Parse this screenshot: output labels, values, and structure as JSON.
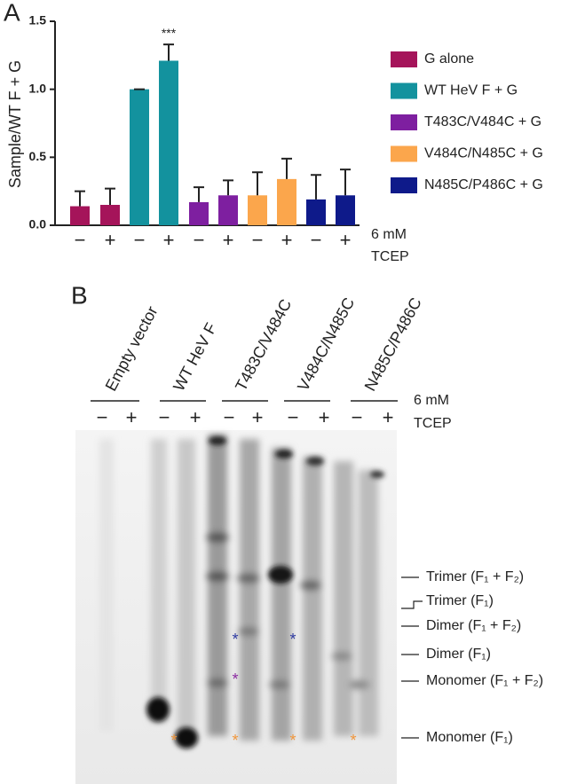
{
  "chart_data": {
    "type": "bar",
    "panel_label": "A",
    "ylabel": "Sample/WT F + G",
    "categories": [
      "−",
      "+",
      "−",
      "+",
      "−",
      "+",
      "−",
      "+",
      "−",
      "+"
    ],
    "xlabel_lines": [
      "6 mM",
      "TCEP"
    ],
    "ylim": [
      0,
      1.5
    ],
    "yticks": [
      {
        "value": 0,
        "label": "0.0"
      },
      {
        "value": 0.5,
        "label": "0.5"
      },
      {
        "value": 1,
        "label": "1.0"
      },
      {
        "value": 1.5,
        "label": "1.5"
      }
    ],
    "series": [
      {
        "name": "G alone",
        "color": "#a5145a",
        "values": [
          0.14,
          0.15,
          null,
          null,
          null,
          null,
          null,
          null,
          null,
          null
        ],
        "errors": [
          0.11,
          0.12,
          null,
          null,
          null,
          null,
          null,
          null,
          null,
          null
        ]
      },
      {
        "name": "WT HeV F + G",
        "color": "#13929e",
        "values": [
          null,
          null,
          1.0,
          1.21,
          null,
          null,
          null,
          null,
          null,
          null
        ],
        "errors": [
          null,
          null,
          0,
          0.12,
          null,
          null,
          null,
          null,
          null,
          null
        ]
      },
      {
        "name": "T483C/V484C + G",
        "color": "#7e1fa0",
        "values": [
          null,
          null,
          null,
          null,
          0.17,
          0.22,
          null,
          null,
          null,
          null
        ],
        "errors": [
          null,
          null,
          null,
          null,
          0.11,
          0.11,
          null,
          null,
          null,
          null
        ]
      },
      {
        "name": "V484C/N485C + G",
        "color": "#fba64c",
        "values": [
          null,
          null,
          null,
          null,
          null,
          null,
          0.22,
          0.34,
          null,
          null
        ],
        "errors": [
          null,
          null,
          null,
          null,
          null,
          null,
          0.17,
          0.15,
          null,
          null
        ]
      },
      {
        "name": "N485C/P486C + G",
        "color": "#0e1a8a",
        "values": [
          null,
          null,
          null,
          null,
          null,
          null,
          null,
          null,
          0.19,
          0.22
        ],
        "errors": [
          null,
          null,
          null,
          null,
          null,
          null,
          null,
          null,
          0.18,
          0.19
        ]
      }
    ],
    "annotation": "***",
    "legend": "right"
  },
  "panel_b": {
    "panel_label": "B",
    "lanes": [
      "Empty vector",
      "WT HeV F",
      "T483C/V484C",
      "V484C/N485C",
      "N485C/P486C"
    ],
    "signs": [
      "−",
      "+",
      "−",
      "+",
      "−",
      "+",
      "−",
      "+",
      "−",
      "+"
    ],
    "condition_lines": [
      "6 mM",
      "TCEP"
    ],
    "bands": [
      "Trimer (F₁ + F₂)",
      "Trimer (F₁)",
      "Dimer (F₁ + F₂)",
      "Dimer (F₁)",
      "Monomer (F₁ + F₂)",
      "Monomer (F₁)"
    ],
    "markers": [
      {
        "text": "*",
        "color": "#2e3aa0"
      },
      {
        "text": "*",
        "color": "#2e3aa0"
      },
      {
        "text": "*",
        "color": "#8a2aa0"
      },
      {
        "text": "*",
        "color": "#f0963c"
      },
      {
        "text": "*",
        "color": "#f0963c"
      },
      {
        "text": "*",
        "color": "#f0963c"
      },
      {
        "text": "*",
        "color": "#f0963c"
      }
    ]
  }
}
